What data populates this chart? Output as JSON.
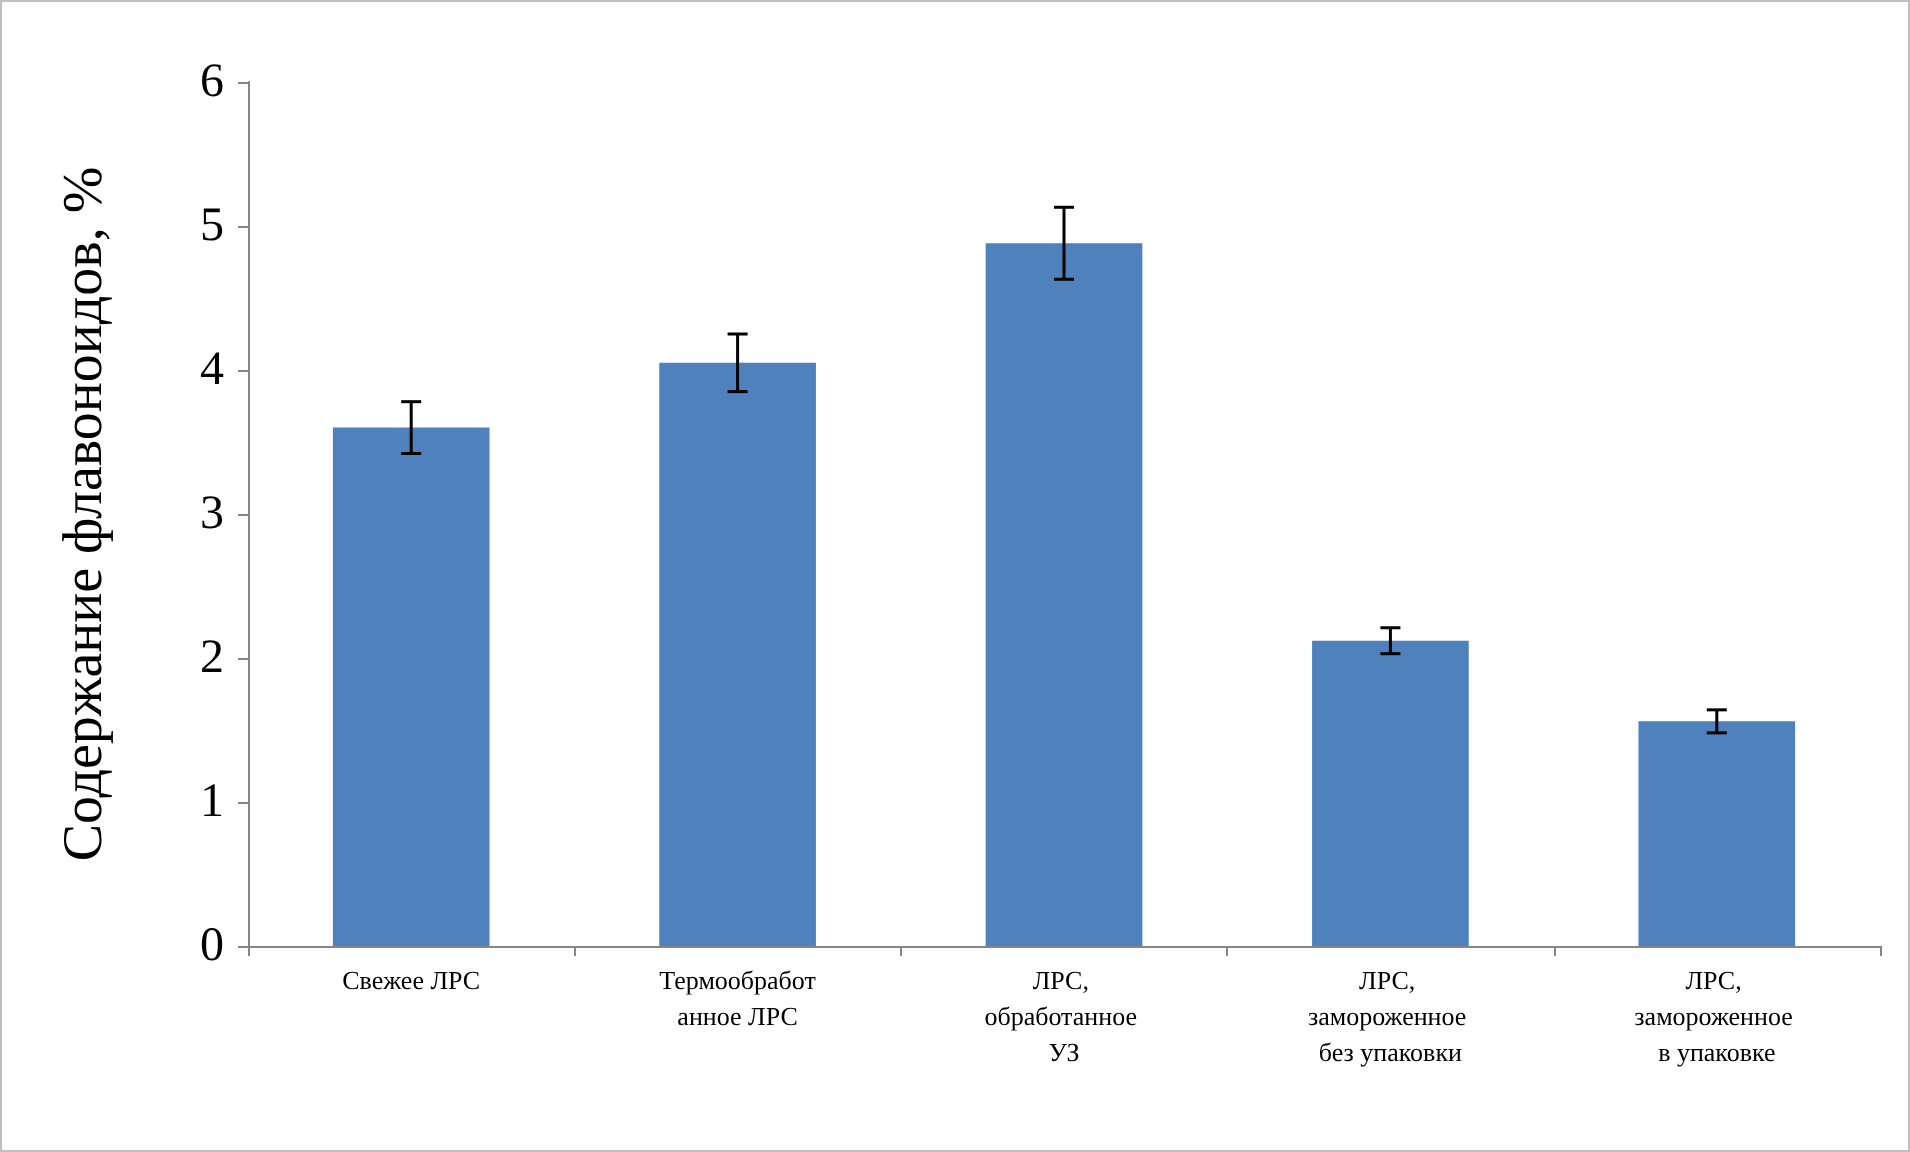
{
  "chart_data": {
    "type": "bar",
    "ylabel": "Содержание флавоноидов, %",
    "categories": [
      "Свежее ЛРС",
      "Термообработанное ЛРС",
      "ЛРС, обработанное УЗ",
      "ЛРС, замороженное без упаковки",
      "ЛРС, замороженное в упаковке"
    ],
    "values": [
      3.6,
      4.05,
      4.88,
      2.12,
      1.56
    ],
    "errors": [
      0.18,
      0.2,
      0.25,
      0.09,
      0.08
    ],
    "color": "#4f81bd",
    "ylim": [
      0,
      6
    ],
    "yticks": [
      0,
      1,
      2,
      3,
      4,
      5,
      6
    ],
    "grid": false
  }
}
